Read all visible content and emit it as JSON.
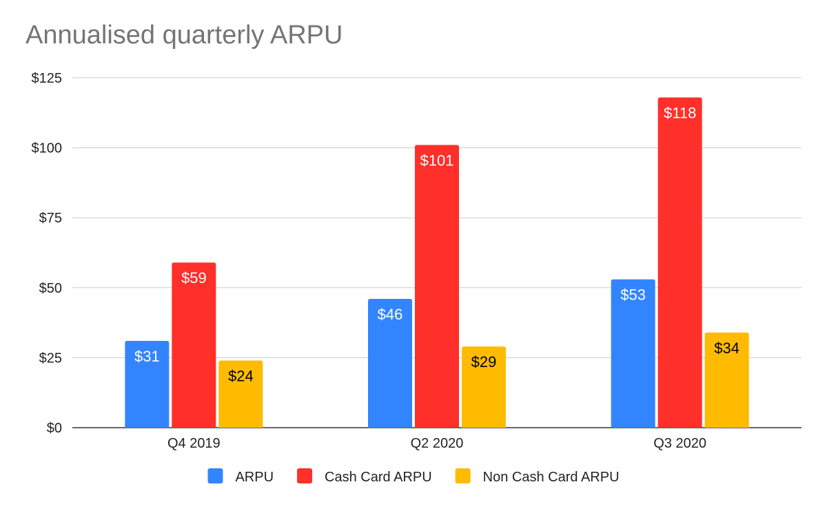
{
  "chart_data": {
    "type": "bar",
    "title": "Annualised quarterly ARPU",
    "categories": [
      "Q4 2019",
      "Q2 2020",
      "Q3 2020"
    ],
    "series": [
      {
        "name": "ARPU",
        "values": [
          31,
          46,
          53
        ],
        "labels": [
          "$31",
          "$46",
          "$53"
        ],
        "color": "#3385ff",
        "label_color": "#ffffff"
      },
      {
        "name": "Cash Card ARPU",
        "values": [
          59,
          101,
          118
        ],
        "labels": [
          "$59",
          "$101",
          "$118"
        ],
        "color": "#ff2f2a",
        "label_color": "#ffffff"
      },
      {
        "name": "Non Cash Card ARPU",
        "values": [
          24,
          29,
          34
        ],
        "labels": [
          "$24",
          "$29",
          "$34"
        ],
        "color": "#ffbb00",
        "label_color": "#000000"
      }
    ],
    "ylim": [
      0,
      125
    ],
    "yticks": [
      0,
      25,
      50,
      75,
      100,
      125
    ],
    "ytick_labels": [
      "$0",
      "$25",
      "$50",
      "$75",
      "$100",
      "$125"
    ],
    "grid": true,
    "legend_position": "bottom"
  }
}
